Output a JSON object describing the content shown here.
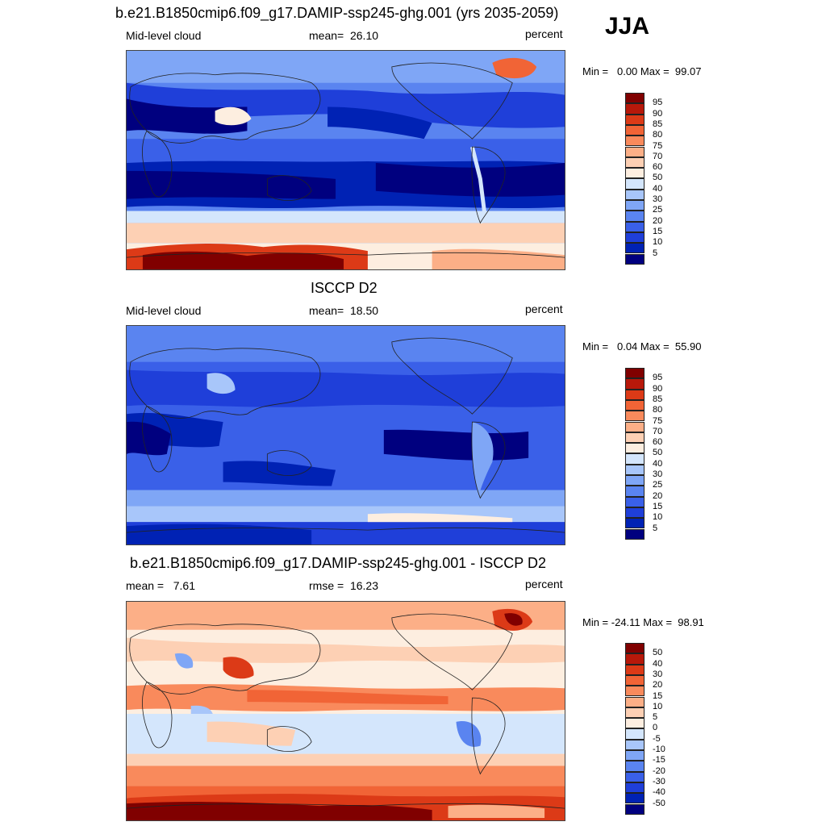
{
  "season": "JJA",
  "panels": [
    {
      "title": "b.e21.B1850cmip6.f09_g17.DAMIP-ssp245-ghg.001 (yrs 2035-2059)",
      "left_label": "Mid-level cloud",
      "center_label": "mean=  26.10",
      "right_label": "percent",
      "minmax": "Min =   0.00 Max =  99.07",
      "colorbar_ticks": [
        "95",
        "90",
        "85",
        "80",
        "75",
        "70",
        "60",
        "50",
        "40",
        "30",
        "25",
        "20",
        "15",
        "10",
        "5"
      ]
    },
    {
      "title": "ISCCP D2",
      "left_label": "Mid-level cloud",
      "center_label": "mean=  18.50",
      "right_label": "percent",
      "minmax": "Min =   0.04 Max =  55.90",
      "colorbar_ticks": [
        "95",
        "90",
        "85",
        "80",
        "75",
        "70",
        "60",
        "50",
        "40",
        "30",
        "25",
        "20",
        "15",
        "10",
        "5"
      ]
    },
    {
      "title": "b.e21.B1850cmip6.f09_g17.DAMIP-ssp245-ghg.001 - ISCCP D2",
      "left_label": "mean =   7.61",
      "center_label": "rmse =  16.23",
      "right_label": "percent",
      "minmax": "Min = -24.11 Max =  98.91",
      "colorbar_ticks": [
        "50",
        "40",
        "30",
        "20",
        "15",
        "10",
        "5",
        "0",
        "-5",
        "-10",
        "-15",
        "-20",
        "-30",
        "-40",
        "-50"
      ]
    }
  ],
  "chart_data": [
    {
      "type": "heatmap",
      "title": "b.e21.B1850cmip6.f09_g17.DAMIP-ssp245-ghg.001 (yrs 2035-2059)",
      "variable": "Mid-level cloud",
      "units": "percent",
      "mean": 26.1,
      "min": 0.0,
      "max": 99.07,
      "contour_levels": [
        5,
        10,
        15,
        20,
        25,
        30,
        40,
        50,
        60,
        70,
        75,
        80,
        85,
        90,
        95
      ],
      "colors": [
        "#00007f",
        "#0022b4",
        "#1f3fd9",
        "#3a60e8",
        "#5a84f0",
        "#7fa6f6",
        "#a8c6fa",
        "#d4e6fc",
        "#fdeee0",
        "#fdd0b4",
        "#fcaf87",
        "#f98a5c",
        "#f16436",
        "#dc3a17",
        "#b7180a",
        "#800000"
      ]
    },
    {
      "type": "heatmap",
      "title": "ISCCP D2",
      "variable": "Mid-level cloud",
      "units": "percent",
      "mean": 18.5,
      "min": 0.04,
      "max": 55.9,
      "contour_levels": [
        5,
        10,
        15,
        20,
        25,
        30,
        40,
        50,
        60,
        70,
        75,
        80,
        85,
        90,
        95
      ],
      "colors": [
        "#00007f",
        "#0022b4",
        "#1f3fd9",
        "#3a60e8",
        "#5a84f0",
        "#7fa6f6",
        "#a8c6fa",
        "#d4e6fc",
        "#fdeee0",
        "#fdd0b4",
        "#fcaf87",
        "#f98a5c",
        "#f16436",
        "#dc3a17",
        "#b7180a",
        "#800000"
      ]
    },
    {
      "type": "heatmap",
      "title": "b.e21.B1850cmip6.f09_g17.DAMIP-ssp245-ghg.001 - ISCCP D2",
      "units": "percent",
      "mean": 7.61,
      "rmse": 16.23,
      "min": -24.11,
      "max": 98.91,
      "contour_levels": [
        -50,
        -40,
        -30,
        -20,
        -15,
        -10,
        -5,
        0,
        5,
        10,
        15,
        20,
        30,
        40,
        50
      ],
      "colors": [
        "#00007f",
        "#0022b4",
        "#1f3fd9",
        "#3a60e8",
        "#5a84f0",
        "#7fa6f6",
        "#a8c6fa",
        "#d4e6fc",
        "#fdeee0",
        "#fdd0b4",
        "#fcaf87",
        "#f98a5c",
        "#f16436",
        "#dc3a17",
        "#b7180a",
        "#800000"
      ]
    }
  ]
}
